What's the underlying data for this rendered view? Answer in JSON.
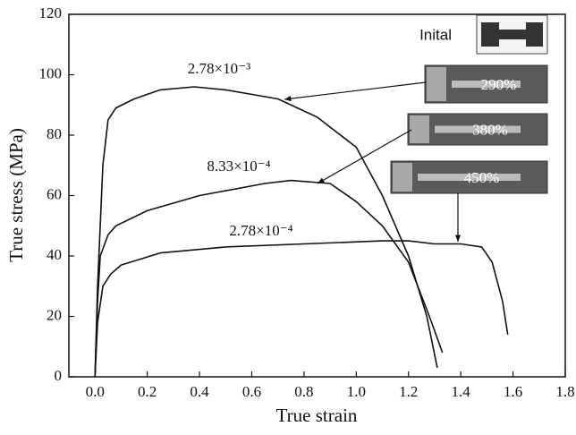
{
  "chart_data": {
    "type": "line",
    "x_label": "True strain",
    "y_label": "True stress (MPa)",
    "xlim": [
      -0.1,
      1.8
    ],
    "ylim": [
      0,
      120
    ],
    "xticks": [
      {
        "value": 0,
        "label": "0.0"
      },
      0.2,
      0.4,
      0.6,
      0.8,
      {
        "value": 1,
        "label": "1.0"
      },
      1.2,
      1.4,
      1.6,
      1.8
    ],
    "yticks": [
      0,
      20,
      40,
      60,
      80,
      100,
      120
    ],
    "series": [
      {
        "name": "2.78×10⁻³",
        "color": "#111111",
        "x": [
          0,
          0.01,
          0.03,
          0.05,
          0.08,
          0.15,
          0.25,
          0.38,
          0.5,
          0.7,
          0.85,
          1.0,
          1.1,
          1.2,
          1.27,
          1.31
        ],
        "values": [
          0,
          30,
          70,
          85,
          89,
          92,
          95,
          96,
          95,
          92,
          86,
          76,
          60,
          40,
          20,
          3
        ]
      },
      {
        "name": "8.33×10⁻⁴",
        "color": "#111111",
        "x": [
          0,
          0.01,
          0.02,
          0.05,
          0.08,
          0.2,
          0.4,
          0.65,
          0.75,
          0.9,
          1.0,
          1.1,
          1.2,
          1.28,
          1.33
        ],
        "values": [
          0,
          25,
          40,
          47,
          50,
          55,
          60,
          64,
          65,
          64,
          58,
          50,
          38,
          20,
          8
        ]
      },
      {
        "name": "2.78×10⁻⁴",
        "color": "#111111",
        "x": [
          0,
          0.01,
          0.03,
          0.06,
          0.1,
          0.25,
          0.5,
          0.8,
          1.1,
          1.2,
          1.3,
          1.4,
          1.48,
          1.52,
          1.56,
          1.58
        ],
        "values": [
          0,
          18,
          30,
          34,
          37,
          41,
          43,
          44,
          45,
          45,
          44,
          44,
          43,
          38,
          25,
          14
        ]
      }
    ],
    "insets": [
      "Inital",
      "290%",
      "380%",
      "450%"
    ]
  }
}
